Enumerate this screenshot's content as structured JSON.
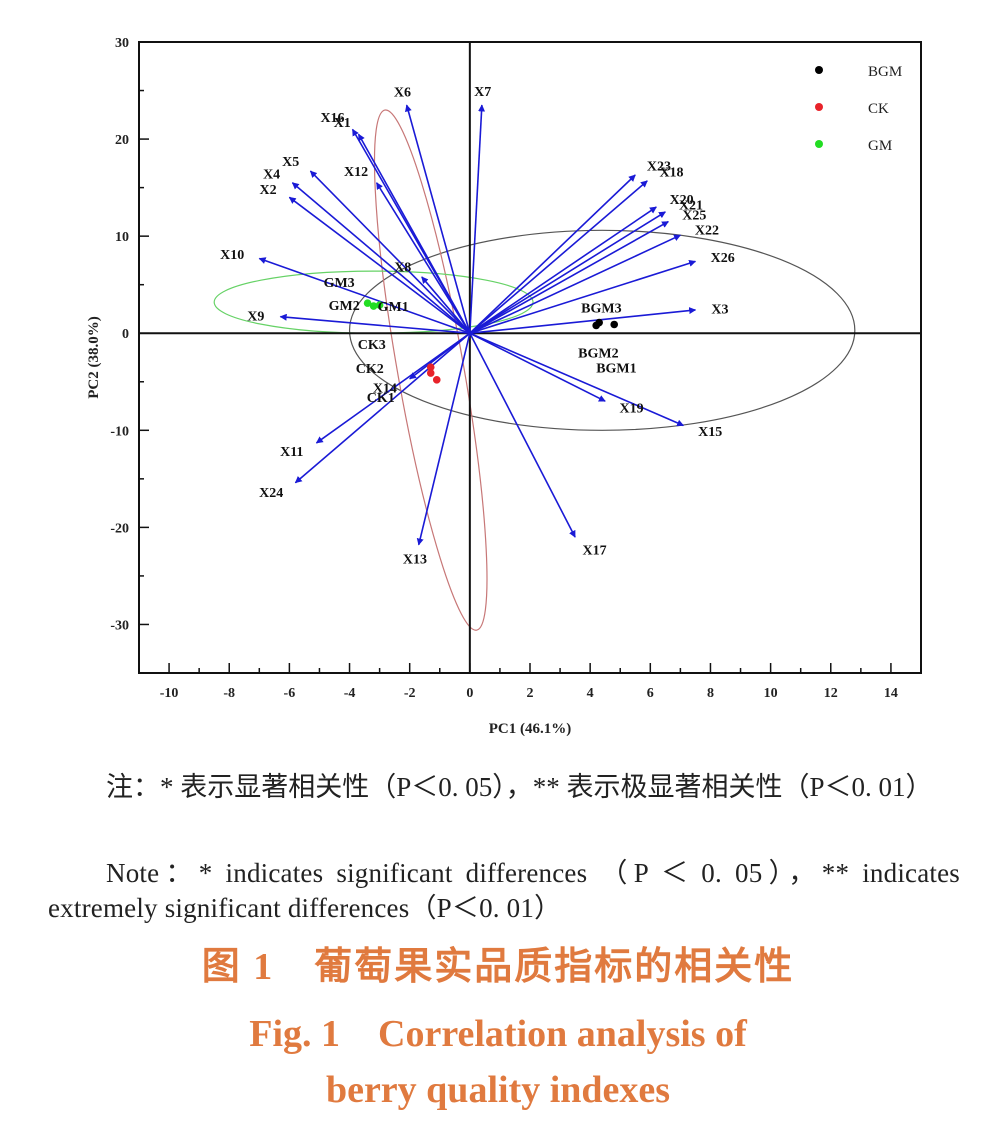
{
  "chart_data": {
    "type": "scatter",
    "subtype": "pca-biplot",
    "xlabel": "PC1 (46.1%)",
    "ylabel": "PC2 (38.0%)",
    "xlim": [
      -11,
      15
    ],
    "ylim": [
      -35,
      30
    ],
    "xticks": [
      -10,
      -8,
      -6,
      -4,
      -2,
      0,
      2,
      4,
      6,
      8,
      10,
      12,
      14
    ],
    "yticks": [
      -30,
      -20,
      -10,
      0,
      10,
      20,
      30
    ],
    "legend_position": "top-right",
    "groups": [
      {
        "name": "BGM",
        "color": "#000000",
        "points": [
          {
            "label": "BGM3",
            "x": 4.3,
            "y": 1.1
          },
          {
            "label": "BGM2",
            "x": 4.2,
            "y": 0.8
          },
          {
            "label": "BGM1",
            "x": 4.8,
            "y": 0.9
          }
        ],
        "ellipse": {
          "cx": 4.4,
          "cy": 0.3,
          "rx": 8.4,
          "ry": 10.3,
          "angle": 0
        }
      },
      {
        "name": "CK",
        "color": "#e8232a",
        "points": [
          {
            "label": "CK3",
            "x": -1.3,
            "y": -3.5
          },
          {
            "label": "CK2",
            "x": -1.3,
            "y": -4.1
          },
          {
            "label": "CK1",
            "x": -1.1,
            "y": -4.8
          }
        ],
        "ellipse": {
          "cx": -1.3,
          "cy": -3.8,
          "rx": 1.1,
          "ry": 27.2,
          "angle": 10
        }
      },
      {
        "name": "GM",
        "color": "#22dd22",
        "points": [
          {
            "label": "GM3",
            "x": -3.4,
            "y": 3.1
          },
          {
            "label": "GM2",
            "x": -3.2,
            "y": 2.8
          },
          {
            "label": "GM1",
            "x": -3.0,
            "y": 2.9
          }
        ],
        "ellipse": {
          "cx": -3.2,
          "cy": 3.2,
          "rx": 5.3,
          "ry": 3.2,
          "angle": 0
        }
      }
    ],
    "loadings": [
      {
        "label": "X1",
        "x": -3.7,
        "y": 20.5
      },
      {
        "label": "X2",
        "x": -6.0,
        "y": 14.0
      },
      {
        "label": "X3",
        "x": 7.5,
        "y": 2.4
      },
      {
        "label": "X4",
        "x": -5.9,
        "y": 15.5
      },
      {
        "label": "X5",
        "x": -5.3,
        "y": 16.7
      },
      {
        "label": "X6",
        "x": -2.1,
        "y": 23.5
      },
      {
        "label": "X7",
        "x": 0.4,
        "y": 23.5
      },
      {
        "label": "X8",
        "x": -1.6,
        "y": 5.8
      },
      {
        "label": "X9",
        "x": -6.3,
        "y": 1.7
      },
      {
        "label": "X10",
        "x": -7.0,
        "y": 7.7
      },
      {
        "label": "X11",
        "x": -5.1,
        "y": -11.3
      },
      {
        "label": "X12",
        "x": -3.1,
        "y": 15.5
      },
      {
        "label": "X13",
        "x": -1.7,
        "y": -21.8
      },
      {
        "label": "X14",
        "x": -2.0,
        "y": -4.7
      },
      {
        "label": "X15",
        "x": 7.1,
        "y": -9.5
      },
      {
        "label": "X16",
        "x": -3.9,
        "y": 21.0
      },
      {
        "label": "X17",
        "x": 3.5,
        "y": -21.0
      },
      {
        "label": "X18",
        "x": 5.9,
        "y": 15.7
      },
      {
        "label": "X19",
        "x": 4.5,
        "y": -7.0
      },
      {
        "label": "X20",
        "x": 6.2,
        "y": 13.0
      },
      {
        "label": "X21",
        "x": 6.5,
        "y": 12.5
      },
      {
        "label": "X22",
        "x": 7.0,
        "y": 10.1
      },
      {
        "label": "X23",
        "x": 5.5,
        "y": 16.3
      },
      {
        "label": "X24",
        "x": -5.8,
        "y": -15.4
      },
      {
        "label": "X25",
        "x": 6.6,
        "y": 11.5
      },
      {
        "label": "X26",
        "x": 7.5,
        "y": 7.4
      }
    ],
    "loading_color": "#1a1ad6"
  },
  "notes": {
    "zh": "注：* 表示显著相关性（P＜0. 05），** 表示极显著相关性（P＜0. 01）",
    "en": "Note：* indicates significant differences （P ＜ 0. 05），** indicates extremely significant differences（P＜0. 01）"
  },
  "caption": {
    "zh": "图 1　葡萄果实品质指标的相关性",
    "en_line1": "Fig. 1　Correlation analysis of",
    "en_line2": "berry quality indexes"
  }
}
